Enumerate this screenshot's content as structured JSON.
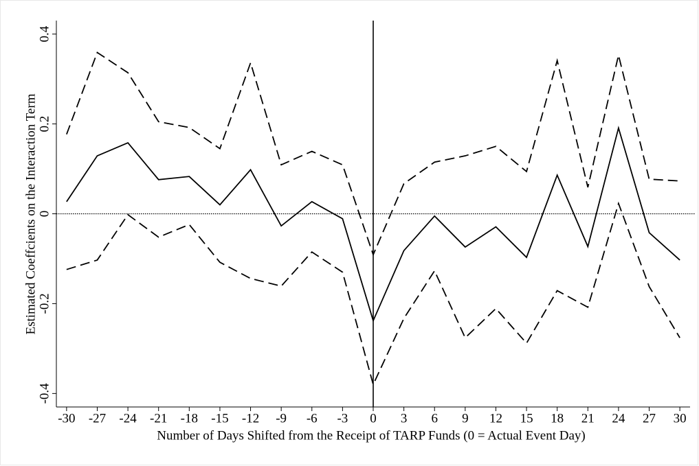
{
  "chart_data": {
    "type": "line",
    "x_label": "Number of Days Shifted from the Receipt of TARP Funds (0 = Actual Event Day)",
    "y_label": "Estimated Coeffcients on the Interaction Term",
    "x": [
      -30,
      -27,
      -24,
      -21,
      -18,
      -15,
      -12,
      -9,
      -6,
      -3,
      0,
      3,
      6,
      9,
      12,
      15,
      18,
      21,
      24,
      27,
      30
    ],
    "series": [
      {
        "color": "#000000",
        "dashed": false,
        "values": [
          0.027,
          0.129,
          0.158,
          0.076,
          0.083,
          0.02,
          0.098,
          -0.027,
          0.027,
          -0.011,
          -0.238,
          -0.082,
          -0.005,
          -0.074,
          -0.029,
          -0.097,
          0.086,
          -0.073,
          0.191,
          -0.042,
          -0.103
        ]
      },
      {
        "color": "#000000",
        "dashed": true,
        "values": [
          0.177,
          0.359,
          0.314,
          0.205,
          0.192,
          0.145,
          0.336,
          0.109,
          0.139,
          0.109,
          -0.091,
          0.067,
          0.115,
          0.129,
          0.15,
          0.094,
          0.341,
          0.059,
          0.353,
          0.077,
          0.073
        ]
      },
      {
        "color": "#000000",
        "dashed": true,
        "values": [
          -0.124,
          -0.103,
          -0.002,
          -0.052,
          -0.024,
          -0.108,
          -0.144,
          -0.161,
          -0.085,
          -0.13,
          -0.38,
          -0.233,
          -0.127,
          -0.276,
          -0.211,
          -0.288,
          -0.171,
          -0.208,
          0.023,
          -0.162,
          -0.276
        ]
      }
    ],
    "xlim": [
      -31,
      31
    ],
    "ylim": [
      -0.43,
      0.43
    ],
    "xticks": [
      -30,
      -27,
      -24,
      -21,
      -18,
      -15,
      -12,
      -9,
      -6,
      -3,
      0,
      3,
      6,
      9,
      12,
      15,
      18,
      21,
      24,
      27,
      30
    ],
    "yticks": [
      -0.4,
      -0.2,
      0,
      0.2,
      0.4
    ],
    "reference_lines": {
      "x": 0,
      "y": 0
    },
    "grid": false
  }
}
